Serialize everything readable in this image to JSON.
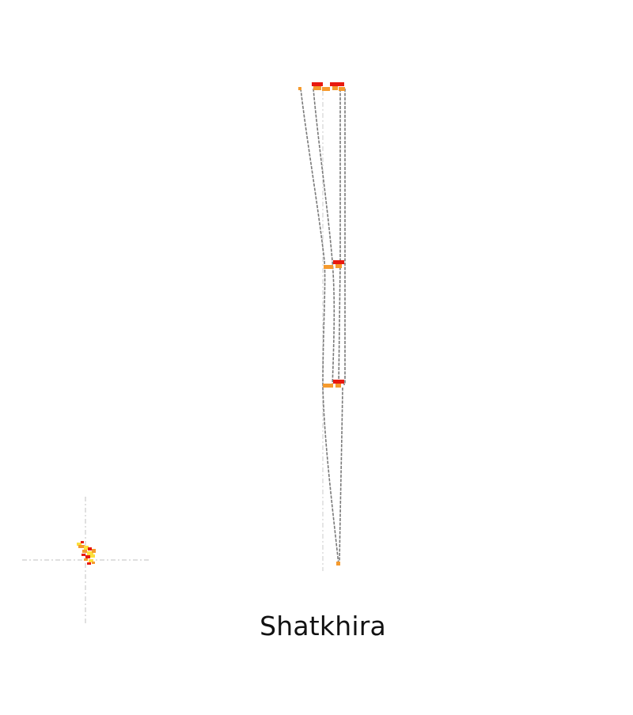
{
  "title": "Shatkhira",
  "colors": {
    "background": "#ffffff",
    "guide_line": "#cccccc",
    "outline": "#7a7a7a",
    "high": "#e8190f",
    "medium": "#f59a2d",
    "low": "#fce03c"
  }
}
